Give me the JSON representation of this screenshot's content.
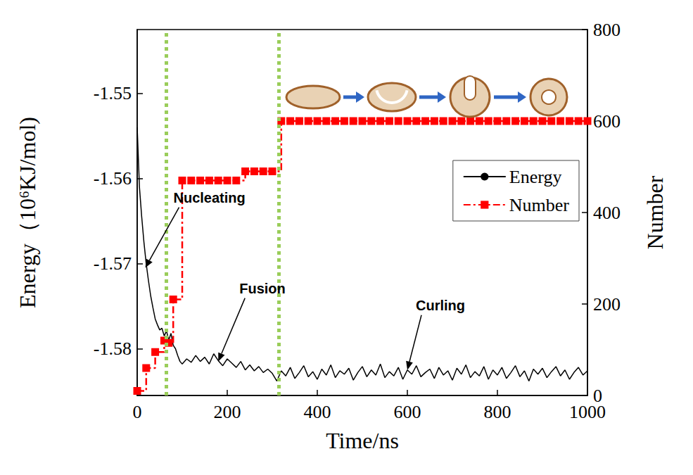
{
  "chart_data": {
    "type": "line",
    "x_label": "Time/ns",
    "y_label": "Energy（10⁶KJ/mol)",
    "y2_label": "Number",
    "xlim": [
      0,
      1000
    ],
    "xticks": [
      0,
      200,
      400,
      600,
      800,
      1000
    ],
    "ylim": [
      -1.5855,
      -1.5425
    ],
    "yticks": [
      -1.58,
      -1.57,
      -1.56,
      -1.55
    ],
    "y2lim": [
      0,
      800
    ],
    "y2ticks": [
      0,
      200,
      400,
      600,
      800
    ],
    "legend": "upper right",
    "grid": false,
    "series": [
      {
        "name": "Energy",
        "color": "#000000",
        "line_style": "solid",
        "marker": "none",
        "x": [
          0,
          5,
          10,
          15,
          20,
          25,
          30,
          35,
          40,
          45,
          50,
          55,
          60,
          65,
          70,
          75,
          80,
          85,
          90,
          95,
          100,
          110,
          120,
          130,
          140,
          150,
          160,
          170,
          180,
          190,
          200,
          210,
          220,
          230,
          240,
          250,
          260,
          270,
          280,
          290,
          300,
          310,
          320,
          330,
          340,
          350,
          360,
          370,
          380,
          390,
          400,
          410,
          420,
          430,
          440,
          450,
          460,
          470,
          480,
          490,
          500,
          510,
          520,
          530,
          540,
          550,
          560,
          570,
          580,
          590,
          600,
          610,
          620,
          630,
          640,
          650,
          660,
          670,
          680,
          690,
          700,
          710,
          720,
          730,
          740,
          750,
          760,
          770,
          780,
          790,
          800,
          810,
          820,
          830,
          840,
          850,
          860,
          870,
          880,
          890,
          900,
          910,
          920,
          930,
          940,
          950,
          960,
          970,
          980,
          990,
          1000
        ],
        "values": [
          -1.554,
          -1.561,
          -1.5645,
          -1.5675,
          -1.57,
          -1.572,
          -1.5738,
          -1.5752,
          -1.5765,
          -1.5772,
          -1.5778,
          -1.5776,
          -1.5785,
          -1.5779,
          -1.579,
          -1.5782,
          -1.5796,
          -1.58,
          -1.5808,
          -1.5815,
          -1.5818,
          -1.5812,
          -1.5816,
          -1.5808,
          -1.5815,
          -1.581,
          -1.5818,
          -1.5806,
          -1.5814,
          -1.582,
          -1.5812,
          -1.5817,
          -1.5822,
          -1.5815,
          -1.5825,
          -1.5819,
          -1.5826,
          -1.5821,
          -1.5828,
          -1.5824,
          -1.5829,
          -1.5838,
          -1.5826,
          -1.5832,
          -1.5822,
          -1.5835,
          -1.5828,
          -1.582,
          -1.5833,
          -1.5827,
          -1.5836,
          -1.5824,
          -1.5831,
          -1.5819,
          -1.5834,
          -1.5826,
          -1.583,
          -1.5823,
          -1.5837,
          -1.5828,
          -1.5821,
          -1.5833,
          -1.5825,
          -1.5831,
          -1.5818,
          -1.5834,
          -1.5827,
          -1.5832,
          -1.5822,
          -1.5836,
          -1.5825,
          -1.583,
          -1.582,
          -1.5833,
          -1.5828,
          -1.5824,
          -1.5835,
          -1.5822,
          -1.5831,
          -1.5826,
          -1.5837,
          -1.5823,
          -1.583,
          -1.5819,
          -1.5834,
          -1.5827,
          -1.5832,
          -1.5821,
          -1.5836,
          -1.5825,
          -1.5831,
          -1.5822,
          -1.5835,
          -1.5828,
          -1.582,
          -1.5833,
          -1.5826,
          -1.5838,
          -1.5824,
          -1.583,
          -1.5823,
          -1.5834,
          -1.5827,
          -1.5821,
          -1.5832,
          -1.5825,
          -1.5836,
          -1.5828,
          -1.5822,
          -1.5831,
          -1.5826
        ]
      },
      {
        "name": "Number",
        "color": "#ff0000",
        "axis": "y2",
        "line_style": "dashdot",
        "marker": "square",
        "x": [
          0,
          20,
          40,
          60,
          70,
          80,
          100,
          120,
          140,
          160,
          180,
          200,
          220,
          240,
          260,
          280,
          300,
          320,
          340,
          360,
          380,
          400,
          420,
          440,
          460,
          480,
          500,
          520,
          540,
          560,
          580,
          600,
          620,
          640,
          660,
          680,
          700,
          720,
          740,
          760,
          780,
          800,
          820,
          840,
          860,
          880,
          900,
          920,
          940,
          960,
          980,
          1000
        ],
        "values": [
          10,
          60,
          95,
          120,
          115,
          210,
          470,
          470,
          470,
          470,
          470,
          470,
          470,
          490,
          490,
          490,
          490,
          600,
          600,
          600,
          600,
          600,
          600,
          600,
          600,
          600,
          600,
          600,
          600,
          600,
          600,
          600,
          600,
          600,
          600,
          600,
          600,
          600,
          600,
          600,
          600,
          600,
          600,
          600,
          600,
          600,
          600,
          600,
          600,
          600,
          600,
          600
        ]
      }
    ],
    "vertical_lines": [
      65,
      315
    ],
    "annotations": [
      {
        "text": "Nucleating",
        "x": 18,
        "y": -1.5705
      },
      {
        "text": "Fusion",
        "x": 180,
        "y": -1.5815
      },
      {
        "text": "Curling",
        "x": 600,
        "y": -1.5825
      }
    ]
  }
}
